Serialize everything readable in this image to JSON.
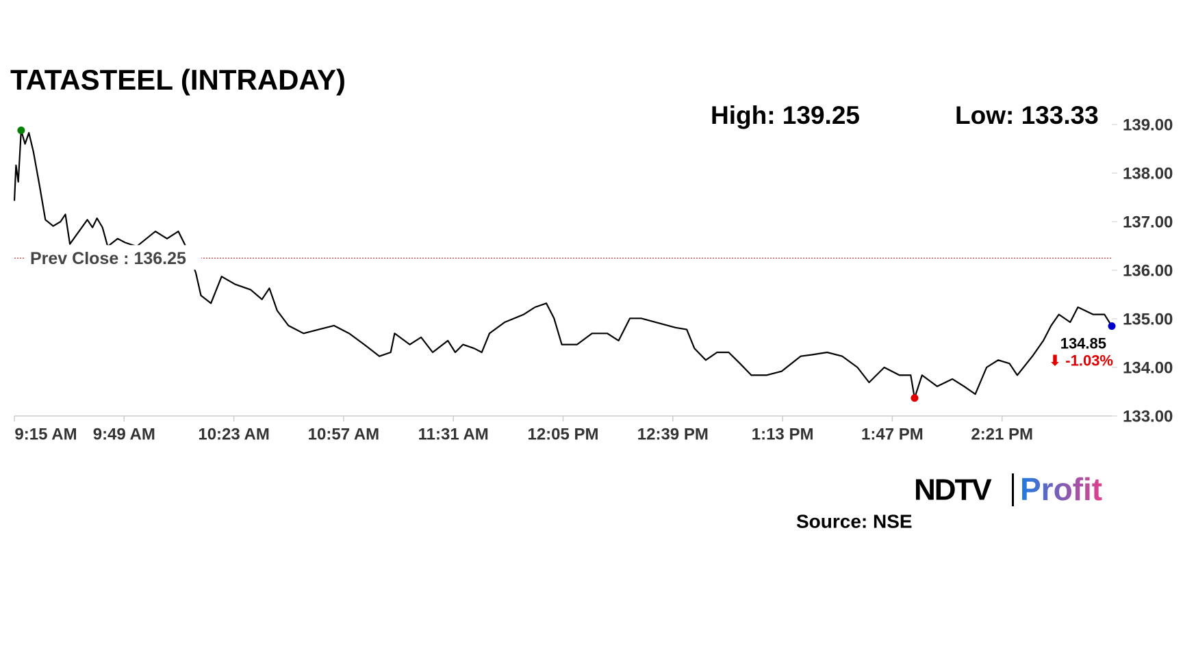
{
  "chart_data": {
    "type": "line",
    "title": "TATASTEEL (INTRADAY)",
    "high_label": "High: 139.25",
    "low_label": "Low: 133.33",
    "prev_close": {
      "value": 136.25,
      "label": "Prev Close : 136.25"
    },
    "last_label": "134.85",
    "change_label": "⬇ -1.03%",
    "source": "Source: NSE",
    "logo": [
      "NDTV",
      "Profit"
    ],
    "xlim": [
      555,
      895
    ],
    "xticks": [
      {
        "value": 555,
        "label": "9:15 AM"
      },
      {
        "value": 589,
        "label": "9:49 AM"
      },
      {
        "value": 623,
        "label": "10:23 AM"
      },
      {
        "value": 657,
        "label": "10:57 AM"
      },
      {
        "value": 691,
        "label": "11:31 AM"
      },
      {
        "value": 725,
        "label": "12:05 PM"
      },
      {
        "value": 759,
        "label": "12:39 PM"
      },
      {
        "value": 793,
        "label": "1:13 PM"
      },
      {
        "value": 827,
        "label": "1:47 PM"
      },
      {
        "value": 861,
        "label": "2:21 PM"
      }
    ],
    "ylim": [
      133,
      139
    ],
    "yticks": [
      {
        "value": 133,
        "label": "133.00"
      },
      {
        "value": 134,
        "label": "134.00"
      },
      {
        "value": 135,
        "label": "135.00"
      },
      {
        "value": 136,
        "label": "136.00"
      },
      {
        "value": 137,
        "label": "137.00"
      },
      {
        "value": 138,
        "label": "138.00"
      },
      {
        "value": 139,
        "label": "139.00"
      }
    ],
    "series": [
      {
        "color": "#000000",
        "x": [
          555,
          555.5,
          556.2,
          557.1,
          558.3,
          559.5,
          560.9,
          562.8,
          564.6,
          567,
          569.3,
          570.8,
          572.2,
          577.6,
          579.2,
          580.6,
          582.3,
          583.9,
          587,
          589.3,
          592.9,
          598.7,
          602.3,
          605.8,
          608.1,
          611.2,
          612.8,
          615.9,
          619.2,
          623.4,
          628.2,
          631.7,
          634,
          636.4,
          639.9,
          644.6,
          649.3,
          654,
          658.7,
          663.4,
          668.1,
          671.6,
          672.8,
          677.5,
          681,
          684.6,
          689.3,
          691.6,
          694,
          697.5,
          699.8,
          702.2,
          706.9,
          712.8,
          716.3,
          719.8,
          722.2,
          724.6,
          729.3,
          734,
          738.7,
          742.2,
          745.7,
          749.2,
          759.8,
          763.3,
          765.7,
          769.2,
          772.7,
          776.3,
          779.8,
          783.3,
          788,
          792.7,
          798.6,
          802.1,
          806.8,
          811.5,
          816.2,
          819.8,
          824.5,
          829.2,
          832.7,
          833.9,
          836.2,
          840.9,
          845.6,
          849.2,
          852.7,
          856.2,
          859.8,
          863.3,
          865.7,
          870.4,
          873.8,
          876.2,
          878.6,
          882.1,
          884.5,
          889.2,
          892.7,
          895
        ],
        "values": [
          137.43,
          138.16,
          137.82,
          138.88,
          138.6,
          138.83,
          138.44,
          137.74,
          137.04,
          136.91,
          137.0,
          137.15,
          136.54,
          137.04,
          136.88,
          137.07,
          136.88,
          136.49,
          136.65,
          136.57,
          136.49,
          136.8,
          136.65,
          136.8,
          136.49,
          135.95,
          135.48,
          135.32,
          135.87,
          135.71,
          135.6,
          135.4,
          135.63,
          135.17,
          134.86,
          134.7,
          134.78,
          134.86,
          134.7,
          134.47,
          134.23,
          134.31,
          134.7,
          134.47,
          134.62,
          134.31,
          134.55,
          134.31,
          134.47,
          134.39,
          134.31,
          134.7,
          134.93,
          135.09,
          135.24,
          135.32,
          135.01,
          134.47,
          134.47,
          134.7,
          134.7,
          134.55,
          135.01,
          135.01,
          134.82,
          134.78,
          134.39,
          134.15,
          134.31,
          134.31,
          134.08,
          133.84,
          133.84,
          133.92,
          134.23,
          134.26,
          134.31,
          134.23,
          134.0,
          133.69,
          134.0,
          133.84,
          133.84,
          133.37,
          133.84,
          133.61,
          133.76,
          133.61,
          133.45,
          134.0,
          134.15,
          134.08,
          133.84,
          134.23,
          134.55,
          134.86,
          135.09,
          134.93,
          135.24,
          135.09,
          135.09,
          134.85
        ]
      }
    ],
    "high_color": "#008000",
    "low_color": "#e00000",
    "last_color": "#0000cc",
    "prev_close_color": "#cc0000"
  }
}
